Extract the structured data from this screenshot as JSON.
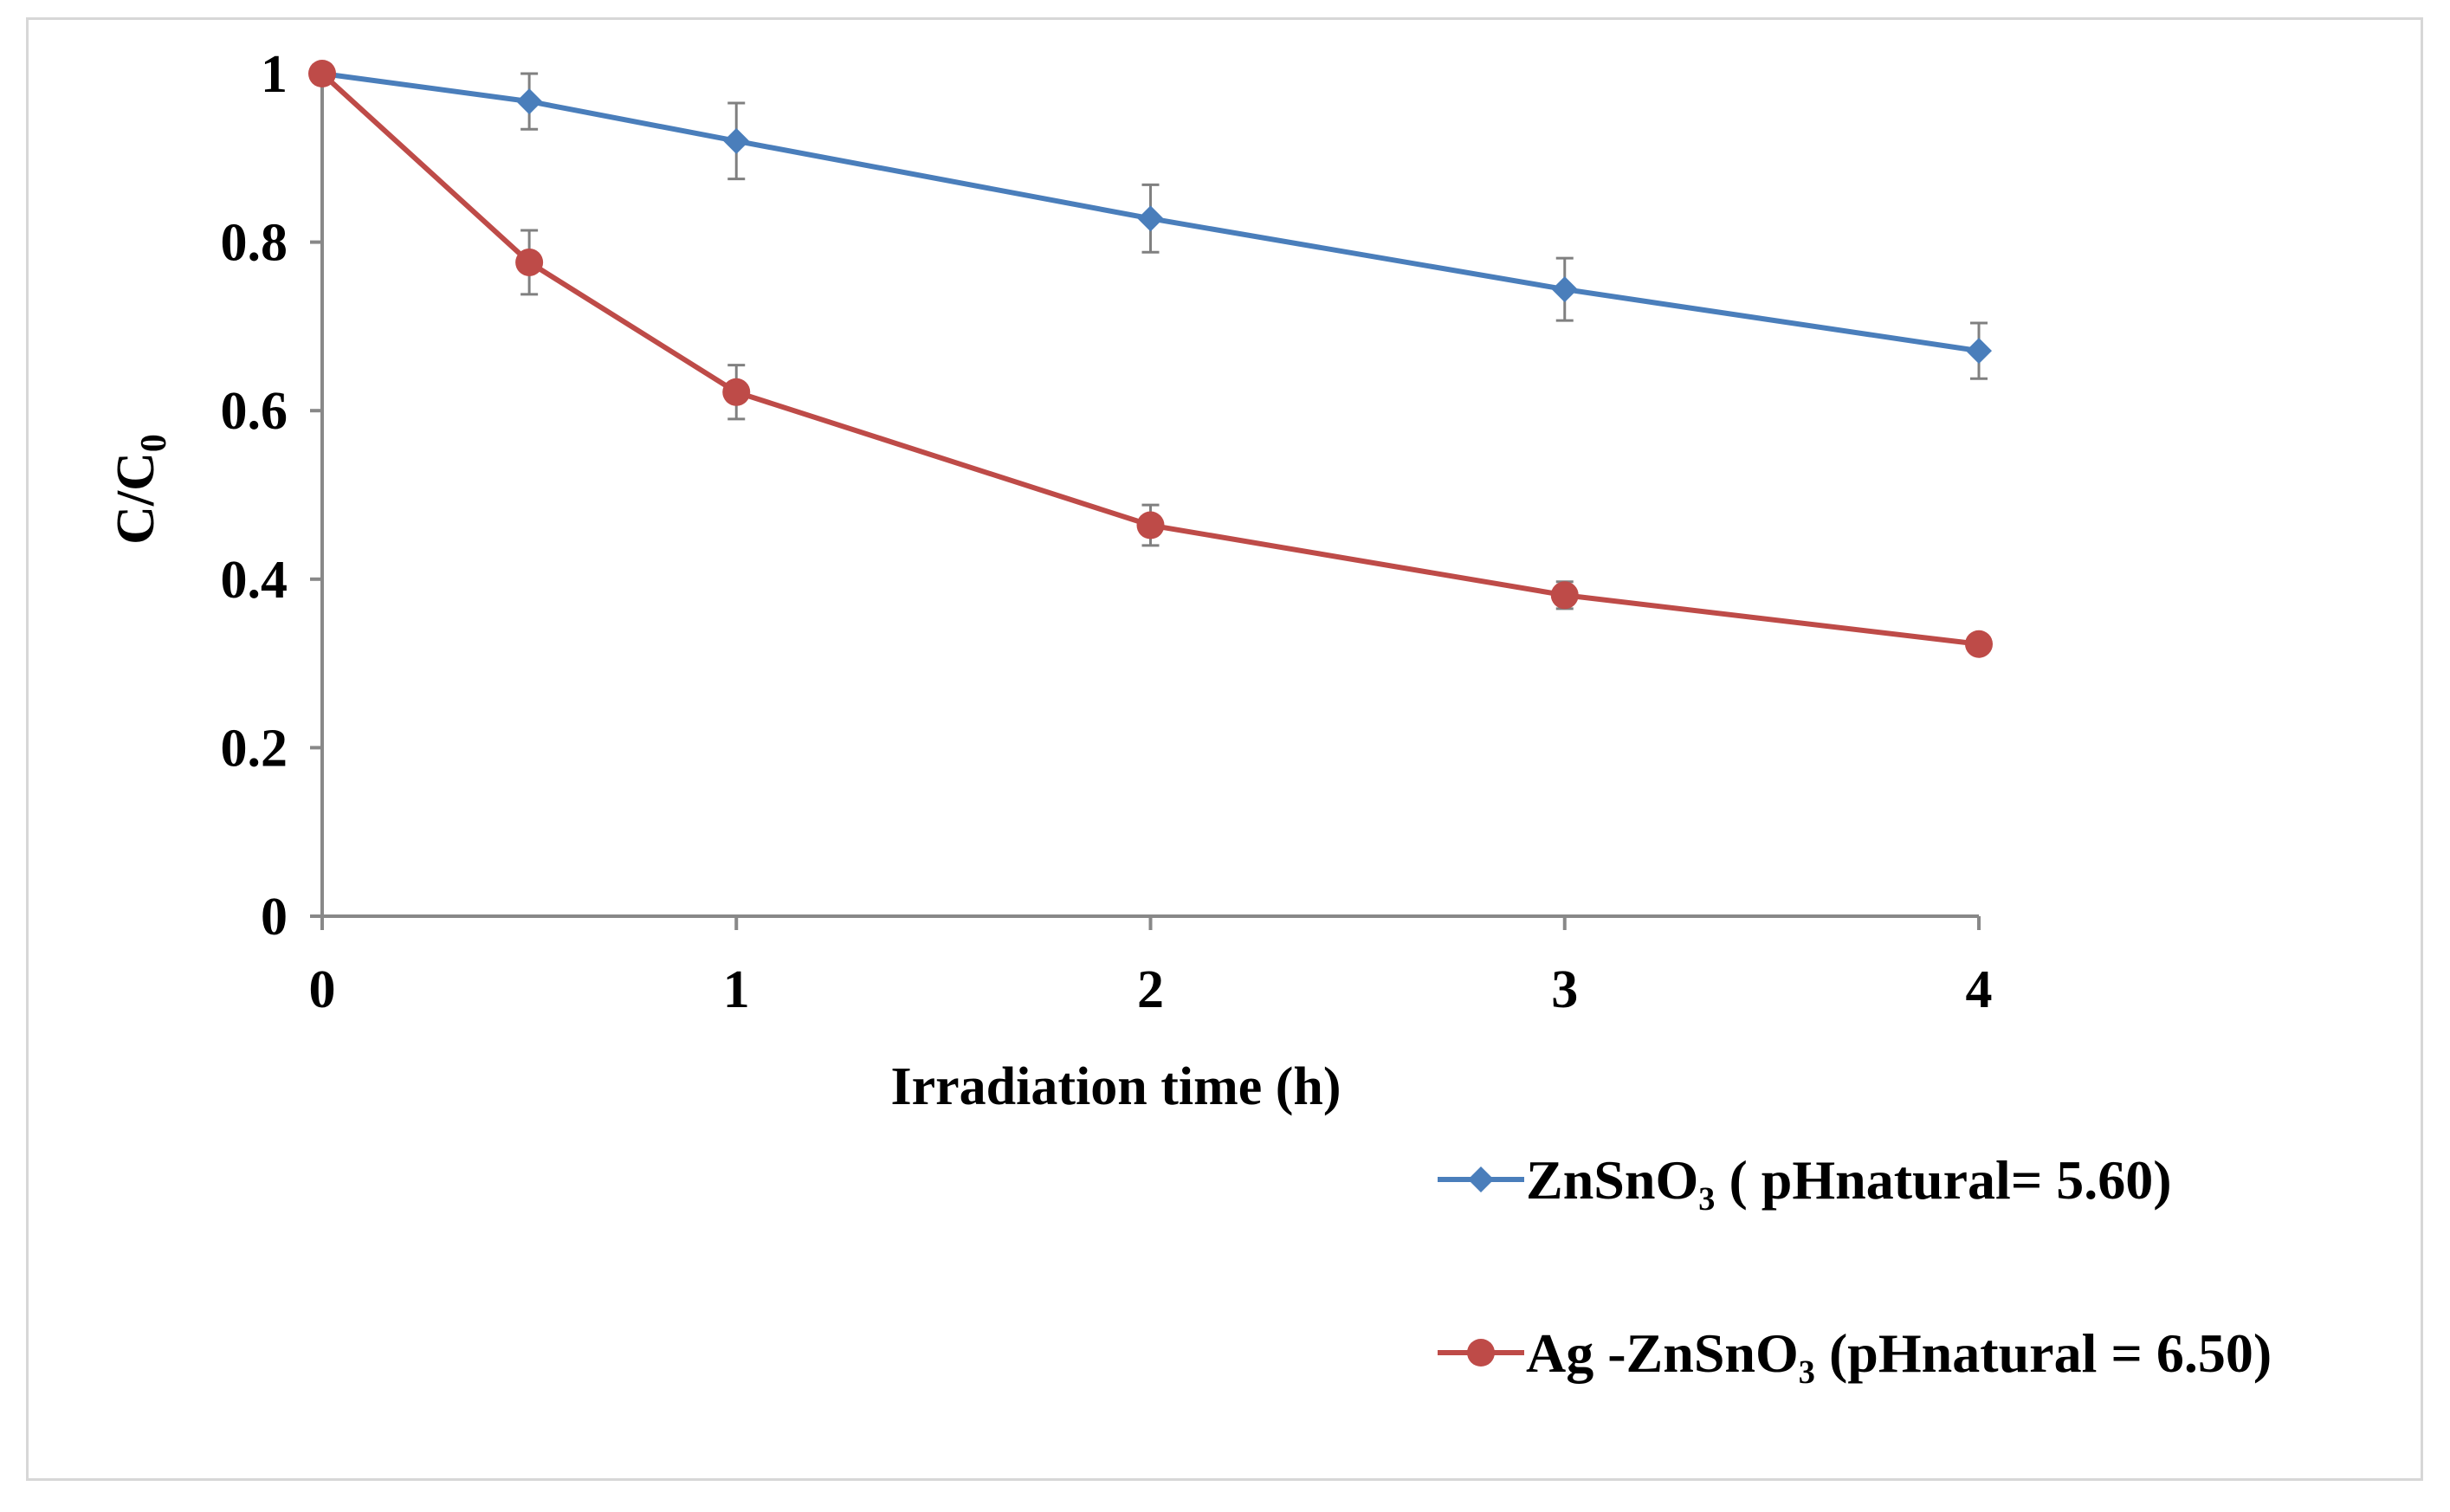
{
  "chart_data": {
    "type": "line",
    "title": "",
    "xlabel": "Irradiation time (h)",
    "ylabel": "C/C",
    "ylabel_subscript": "0",
    "xlim": [
      0,
      4
    ],
    "ylim": [
      0,
      1
    ],
    "x_ticks": [
      "0",
      "1",
      "2",
      "3",
      "4"
    ],
    "y_ticks": [
      "0",
      "0.2",
      "0.4",
      "0.6",
      "0.8",
      "1"
    ],
    "x_tick_values": [
      0,
      1,
      2,
      3,
      4
    ],
    "y_tick_values": [
      0,
      0.2,
      0.4,
      0.6,
      0.8,
      1
    ],
    "grid": false,
    "legend_position": "bottom-right",
    "x": [
      0,
      0.5,
      1,
      2,
      3,
      4
    ],
    "series": [
      {
        "name": "ZnSnO₃ ( pHnatural= 5.60)",
        "color": "#4a7ebb",
        "marker": "diamond",
        "values": [
          1.0,
          0.967,
          0.92,
          0.828,
          0.744,
          0.671
        ],
        "errors": [
          0.0,
          0.033,
          0.045,
          0.04,
          0.037,
          0.033
        ]
      },
      {
        "name": "Ag -ZnSnO₃ (pHnatural = 6.50)",
        "color": "#be4b48",
        "marker": "circle",
        "values": [
          1.0,
          0.776,
          0.622,
          0.464,
          0.381,
          0.323
        ],
        "errors": [
          0.0,
          0.038,
          0.032,
          0.024,
          0.016,
          0.005
        ]
      }
    ],
    "axis_color": "#888888",
    "error_bar_color": "#808080"
  }
}
